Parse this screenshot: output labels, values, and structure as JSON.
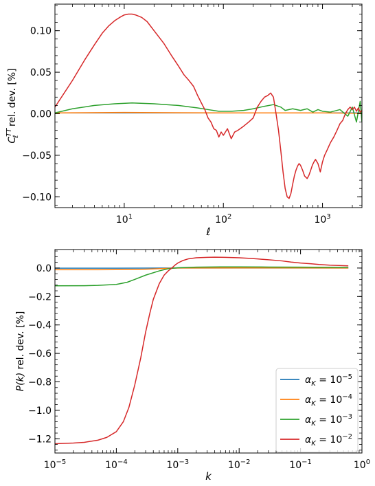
{
  "colors": {
    "blue": "#1f77b4",
    "orange": "#ff7f0e",
    "green": "#2ca02c",
    "red": "#d62728",
    "axis": "#000000"
  },
  "chart_data": [
    {
      "type": "line",
      "xlabel": "ℓ",
      "ylabel_main": "C",
      "ylabel_sub": "ℓ",
      "ylabel_sup": "TT",
      "ylabel_rest": " rel. dev. [%]",
      "xscale": "log",
      "xlim": [
        2,
        2500
      ],
      "ylim": [
        -0.113,
        0.132
      ],
      "xticks": [
        {
          "value": 10,
          "base": "10",
          "exp": "1"
        },
        {
          "value": 100,
          "base": "10",
          "exp": "2"
        },
        {
          "value": 1000,
          "base": "10",
          "exp": "3"
        }
      ],
      "yticks": [
        {
          "value": 0.1,
          "label": "0.10"
        },
        {
          "value": 0.05,
          "label": "0.05"
        },
        {
          "value": 0.0,
          "label": "0.00"
        },
        {
          "value": -0.05,
          "label": "−0.05"
        },
        {
          "value": -0.1,
          "label": "−0.10"
        }
      ],
      "series": [
        {
          "key": "a1",
          "color_key": "blue",
          "x": [
            2,
            10,
            100,
            1000,
            2500
          ],
          "y": [
            0.001,
            0.001,
            0.001,
            0.001,
            0.001
          ]
        },
        {
          "key": "a2",
          "color_key": "orange",
          "x": [
            2,
            10,
            100,
            1000,
            2500
          ],
          "y": [
            0.001,
            0.0015,
            0.001,
            0.001,
            0.0005
          ]
        },
        {
          "key": "a3",
          "color_key": "green",
          "x": [
            2,
            3,
            5,
            8,
            12,
            20,
            35,
            55,
            70,
            90,
            120,
            160,
            200,
            260,
            320,
            380,
            420,
            500,
            600,
            700,
            800,
            900,
            1000,
            1200,
            1500,
            1800,
            2000,
            2200,
            2400,
            2500
          ],
          "y": [
            0.001,
            0.006,
            0.01,
            0.012,
            0.013,
            0.012,
            0.01,
            0.007,
            0.005,
            0.003,
            0.003,
            0.004,
            0.006,
            0.009,
            0.011,
            0.008,
            0.004,
            0.006,
            0.004,
            0.006,
            0.002,
            0.005,
            0.003,
            0.002,
            0.005,
            -0.003,
            0.008,
            -0.01,
            0.015,
            -0.01
          ]
        },
        {
          "key": "a4",
          "color_key": "red",
          "x": [
            2,
            3,
            4,
            5,
            6,
            7,
            8,
            9,
            10,
            11,
            12,
            13,
            15,
            17,
            20,
            25,
            30,
            35,
            40,
            45,
            50,
            55,
            60,
            65,
            70,
            75,
            80,
            85,
            90,
            95,
            100,
            110,
            120,
            130,
            140,
            160,
            180,
            200,
            220,
            240,
            260,
            280,
            300,
            320,
            340,
            360,
            380,
            400,
            420,
            440,
            460,
            480,
            500,
            520,
            540,
            560,
            580,
            600,
            630,
            660,
            700,
            730,
            760,
            790,
            820,
            850,
            900,
            950,
            1000,
            1050,
            1100,
            1200,
            1300,
            1400,
            1500,
            1600,
            1700,
            1800,
            1900,
            2000,
            2100,
            2200,
            2300,
            2400,
            2500
          ],
          "y": [
            0.008,
            0.04,
            0.065,
            0.083,
            0.097,
            0.106,
            0.112,
            0.116,
            0.119,
            0.12,
            0.12,
            0.119,
            0.116,
            0.111,
            0.1,
            0.085,
            0.07,
            0.058,
            0.047,
            0.04,
            0.033,
            0.022,
            0.013,
            0.005,
            -0.005,
            -0.01,
            -0.018,
            -0.02,
            -0.028,
            -0.022,
            -0.026,
            -0.018,
            -0.03,
            -0.022,
            -0.02,
            -0.015,
            -0.01,
            -0.005,
            0.008,
            0.015,
            0.02,
            0.022,
            0.025,
            0.02,
            0.0,
            -0.02,
            -0.045,
            -0.07,
            -0.09,
            -0.1,
            -0.102,
            -0.096,
            -0.085,
            -0.075,
            -0.068,
            -0.063,
            -0.06,
            -0.062,
            -0.068,
            -0.075,
            -0.078,
            -0.074,
            -0.068,
            -0.062,
            -0.058,
            -0.055,
            -0.06,
            -0.07,
            -0.058,
            -0.05,
            -0.045,
            -0.035,
            -0.028,
            -0.02,
            -0.012,
            -0.008,
            0.0,
            0.005,
            0.008,
            0.005,
            0.008,
            0.003,
            0.007,
            0.002,
            0.004
          ]
        }
      ]
    },
    {
      "type": "line",
      "xlabel": "k",
      "ylabel_main": "P(k)",
      "ylabel_rest": " rel. dev. [%]",
      "xscale": "log",
      "xlim": [
        1e-05,
        1
      ],
      "ylim": [
        -1.3,
        0.13
      ],
      "xticks": [
        {
          "value": 1e-05,
          "base": "10",
          "exp": "−5"
        },
        {
          "value": 0.0001,
          "base": "10",
          "exp": "−4"
        },
        {
          "value": 0.001,
          "base": "10",
          "exp": "−3"
        },
        {
          "value": 0.01,
          "base": "10",
          "exp": "−2"
        },
        {
          "value": 0.1,
          "base": "10",
          "exp": "−1"
        },
        {
          "value": 1,
          "base": "10",
          "exp": "0"
        }
      ],
      "yticks": [
        {
          "value": 0.0,
          "label": "0.0"
        },
        {
          "value": -0.2,
          "label": "−0.2"
        },
        {
          "value": -0.4,
          "label": "−0.4"
        },
        {
          "value": -0.6,
          "label": "−0.6"
        },
        {
          "value": -0.8,
          "label": "−0.8"
        },
        {
          "value": -1.0,
          "label": "−1.0"
        },
        {
          "value": -1.2,
          "label": "−1.2"
        }
      ],
      "legend_position": "lower-right",
      "series": [
        {
          "key": "a1",
          "name_base": "α",
          "name_sub": "K",
          "name_eq": " = 10",
          "name_exp": "−5",
          "color_key": "blue",
          "x": [
            1e-05,
            0.0001,
            0.001,
            0.01,
            0.1,
            0.6
          ],
          "y": [
            -0.001,
            -0.001,
            0.0,
            0.0,
            0.0,
            0.0
          ]
        },
        {
          "key": "a2",
          "name_base": "α",
          "name_sub": "K",
          "name_eq": " = 10",
          "name_exp": "−4",
          "color_key": "orange",
          "x": [
            1e-05,
            5e-05,
            0.0001,
            0.0003,
            0.001,
            0.01,
            0.1,
            0.6
          ],
          "y": [
            -0.012,
            -0.012,
            -0.011,
            -0.008,
            0.0,
            0.001,
            0.001,
            0.0
          ]
        },
        {
          "key": "a3",
          "name_base": "α",
          "name_sub": "K",
          "name_eq": " = 10",
          "name_exp": "−3",
          "color_key": "green",
          "x": [
            1e-05,
            3e-05,
            5e-05,
            0.0001,
            0.00015,
            0.0002,
            0.0003,
            0.0005,
            0.0007,
            0.001,
            0.002,
            0.005,
            0.01,
            0.03,
            0.1,
            0.3,
            0.6
          ],
          "y": [
            -0.125,
            -0.124,
            -0.122,
            -0.115,
            -0.1,
            -0.08,
            -0.05,
            -0.02,
            -0.005,
            0.002,
            0.006,
            0.008,
            0.008,
            0.007,
            0.006,
            0.005,
            0.004
          ]
        },
        {
          "key": "a4",
          "name_base": "α",
          "name_sub": "K",
          "name_eq": " = 10",
          "name_exp": "−2",
          "color_key": "red",
          "x": [
            1e-05,
            2e-05,
            3e-05,
            5e-05,
            7e-05,
            0.0001,
            0.00013,
            0.00016,
            0.0002,
            0.00025,
            0.0003,
            0.00035,
            0.0004,
            0.0005,
            0.0006,
            0.0007,
            0.0008,
            0.0009,
            0.001,
            0.0012,
            0.0015,
            0.002,
            0.003,
            0.004,
            0.006,
            0.01,
            0.015,
            0.02,
            0.03,
            0.05,
            0.07,
            0.1,
            0.15,
            0.2,
            0.3,
            0.6
          ],
          "y": [
            -1.235,
            -1.23,
            -1.225,
            -1.21,
            -1.19,
            -1.15,
            -1.08,
            -0.98,
            -0.82,
            -0.63,
            -0.45,
            -0.32,
            -0.22,
            -0.11,
            -0.05,
            -0.02,
            0.0,
            0.02,
            0.035,
            0.052,
            0.065,
            0.072,
            0.075,
            0.076,
            0.075,
            0.072,
            0.068,
            0.064,
            0.058,
            0.05,
            0.042,
            0.035,
            0.03,
            0.025,
            0.02,
            0.015
          ]
        }
      ]
    }
  ]
}
